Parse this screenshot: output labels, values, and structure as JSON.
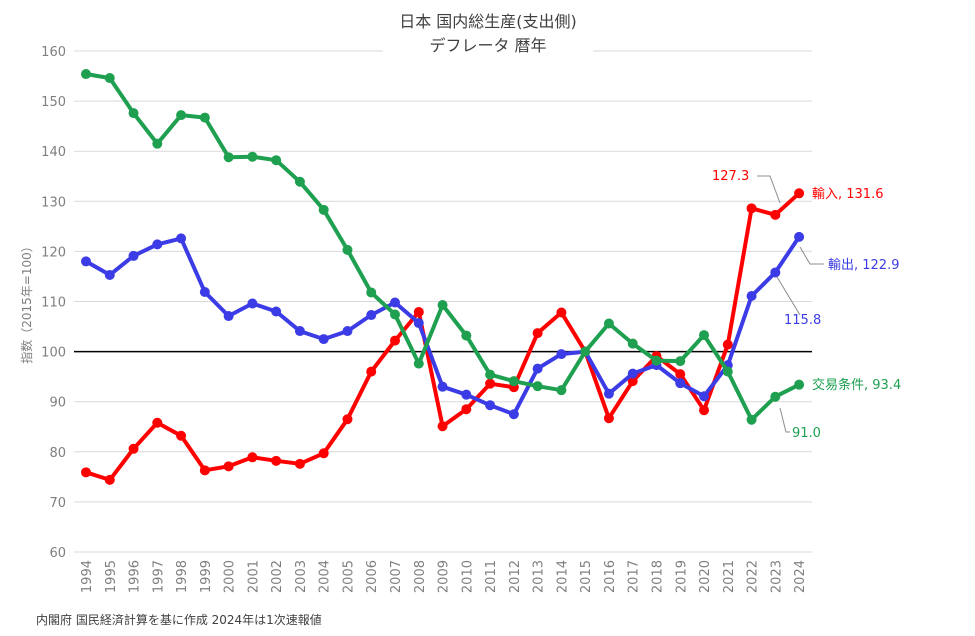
{
  "chart_data": {
    "type": "line",
    "title": "日本 国内総生産(支出側)",
    "subtitle": "デフレータ 暦年",
    "ylabel": "指数（2015年=100）",
    "xlabel": "",
    "ylim": [
      60,
      160
    ],
    "yticks": [
      60,
      70,
      80,
      90,
      100,
      110,
      120,
      130,
      140,
      150,
      160
    ],
    "grid": true,
    "reference_line": 100,
    "x": [
      "1994",
      "1995",
      "1996",
      "1997",
      "1998",
      "1999",
      "2000",
      "2001",
      "2002",
      "2003",
      "2004",
      "2005",
      "2006",
      "2007",
      "2008",
      "2009",
      "2010",
      "2011",
      "2012",
      "2013",
      "2014",
      "2015",
      "2016",
      "2017",
      "2018",
      "2019",
      "2020",
      "2021",
      "2022",
      "2023",
      "2024"
    ],
    "series": [
      {
        "name": "輸入",
        "color": "#ff0000",
        "values": [
          75.9,
          74.4,
          80.6,
          85.8,
          83.2,
          76.3,
          77.1,
          78.9,
          78.2,
          77.6,
          79.7,
          86.5,
          96.0,
          102.2,
          107.9,
          85.1,
          88.5,
          93.6,
          92.9,
          103.7,
          107.8,
          100.0,
          86.7,
          94.1,
          99.1,
          95.5,
          88.3,
          101.4,
          128.6,
          127.3,
          131.6
        ]
      },
      {
        "name": "輸出",
        "color": "#3c3ce6",
        "values": [
          118.0,
          115.3,
          119.1,
          121.4,
          122.6,
          111.9,
          107.1,
          109.6,
          108.0,
          104.1,
          102.5,
          104.1,
          107.3,
          109.8,
          105.7,
          93.0,
          91.4,
          89.3,
          87.5,
          96.6,
          99.5,
          100.0,
          91.6,
          95.6,
          97.3,
          93.7,
          91.1,
          97.3,
          111.1,
          115.8,
          122.9
        ]
      },
      {
        "name": "交易条件",
        "color": "#1ea050",
        "values": [
          155.4,
          154.6,
          147.6,
          141.5,
          147.2,
          146.7,
          138.8,
          138.9,
          138.2,
          133.9,
          128.3,
          120.3,
          111.8,
          107.4,
          97.6,
          109.3,
          103.2,
          95.4,
          94.1,
          93.1,
          92.3,
          100.0,
          105.6,
          101.6,
          98.2,
          98.1,
          103.3,
          96.0,
          86.4,
          91.0,
          93.4
        ]
      }
    ],
    "labels": {
      "import_end": "輸入, 131.6",
      "export_end": "輸出, 122.9",
      "tot_end": "交易条件, 93.4",
      "import_2023": "127.3",
      "export_2023": "115.8",
      "tot_2023": "91.0"
    },
    "source": "内閣府 国民経済計算を基に作成 2024年は1次速報値"
  }
}
